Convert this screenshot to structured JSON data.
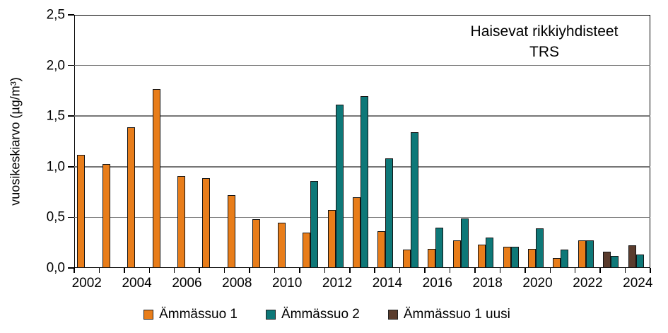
{
  "title": {
    "line1": "Haisevat rikkiyhdisteet",
    "line2": "TRS"
  },
  "y_axis": {
    "label": "vuosikeskiarvo (µg/m³)",
    "tick_labels": [
      "0,0",
      "0,5",
      "1,0",
      "1,5",
      "2,0",
      "2,5"
    ],
    "tick_values": [
      0,
      0.5,
      1.0,
      1.5,
      2.0,
      2.5
    ]
  },
  "chart_data": {
    "type": "bar",
    "title": "Haisevat rikkiyhdisteet TRS",
    "xlabel": "",
    "ylabel": "vuosikeskiarvo (µg/m³)",
    "ylim": [
      0,
      2.5
    ],
    "grid": true,
    "legend_position": "bottom",
    "categories": [
      "2002",
      "2003",
      "2004",
      "2005",
      "2006",
      "2007",
      "2008",
      "2009",
      "2010",
      "2011",
      "2012",
      "2013",
      "2014",
      "2015",
      "2016",
      "2017",
      "2018",
      "2019",
      "2020",
      "2021",
      "2022",
      "2023",
      "2024"
    ],
    "x_tick_labels": [
      "2002",
      "2004",
      "2006",
      "2008",
      "2010",
      "2012",
      "2014",
      "2016",
      "2018",
      "2020",
      "2022",
      "2024"
    ],
    "series": [
      {
        "name": "Ämmässuo 1",
        "color": "#E87D1A",
        "slot": 0,
        "values": [
          1.12,
          1.03,
          1.39,
          1.77,
          0.91,
          0.89,
          0.72,
          0.48,
          0.45,
          0.35,
          0.57,
          0.7,
          0.36,
          0.18,
          0.19,
          0.27,
          0.23,
          0.21,
          0.19,
          0.1,
          0.27,
          null,
          null
        ]
      },
      {
        "name": "Ämmässuo 2",
        "color": "#0E7878",
        "slot": 1,
        "values": [
          null,
          null,
          null,
          null,
          null,
          null,
          null,
          null,
          null,
          0.86,
          1.61,
          1.7,
          1.08,
          1.34,
          0.4,
          0.49,
          0.3,
          0.21,
          0.39,
          0.18,
          0.27,
          0.12,
          0.13
        ]
      },
      {
        "name": "Ämmässuo 1 uusi",
        "color": "#5A3C2D",
        "slot": 0,
        "values": [
          null,
          null,
          null,
          null,
          null,
          null,
          null,
          null,
          null,
          null,
          null,
          null,
          null,
          null,
          null,
          null,
          null,
          null,
          null,
          null,
          null,
          0.16,
          0.22
        ]
      }
    ]
  }
}
